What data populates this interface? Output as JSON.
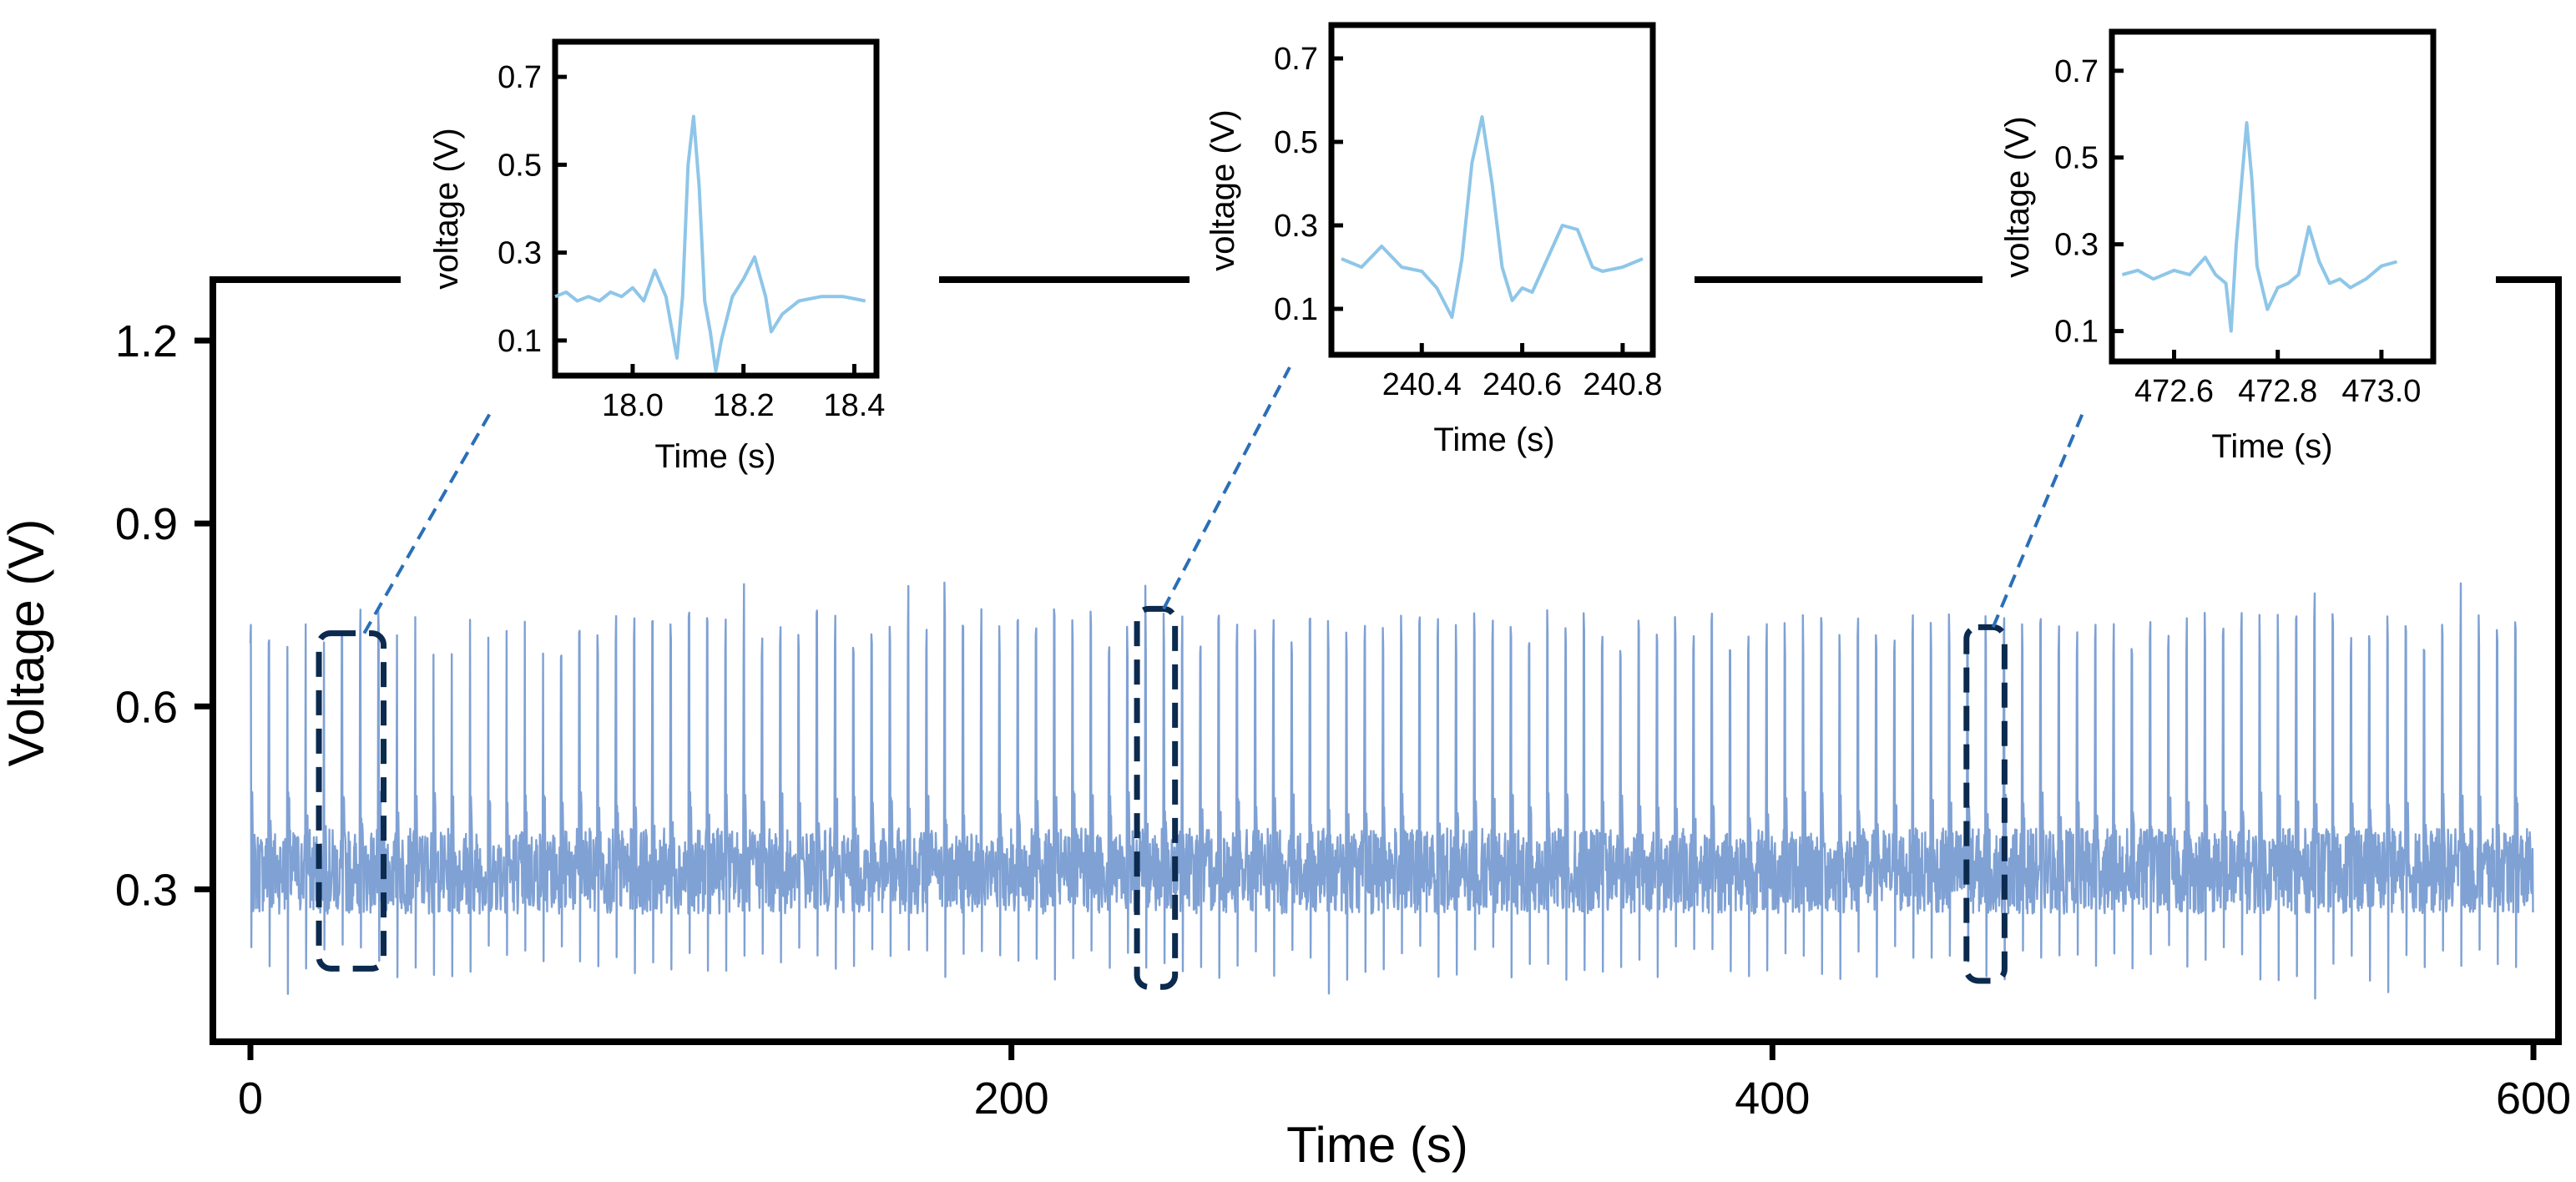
{
  "chart_data": {
    "type": "line",
    "xlabel": "Time (s)",
    "ylabel": "Voltage (V)",
    "xlim": [
      -5,
      605
    ],
    "ylim": [
      0.05,
      1.3
    ],
    "xticks": [
      {
        "value": 0,
        "label": "0"
      },
      {
        "value": 200,
        "label": "200"
      },
      {
        "value": 400,
        "label": "400"
      },
      {
        "value": 600,
        "label": "600"
      }
    ],
    "yticks": [
      {
        "value": 0.3,
        "label": "0.3"
      },
      {
        "value": 0.6,
        "label": "0.6"
      },
      {
        "value": 0.9,
        "label": "0.9"
      },
      {
        "value": 1.2,
        "label": "1.2"
      }
    ],
    "signal": {
      "name": "voltage signal",
      "color": "#7fa1d4",
      "x_range": [
        0,
        600
      ],
      "baseline": 0.33,
      "beat_period_s": 4.8,
      "peak_typical": 0.72,
      "trough_typical": 0.18,
      "peak_max": 0.81,
      "trough_min": 0.12
    },
    "highlight_color": "#0b2a4e",
    "leader_color": "#2a6fb8",
    "highlights": [
      {
        "x_start": 18,
        "x_end": 35,
        "y_low": 0.17,
        "y_high": 0.72
      },
      {
        "x_start": 233,
        "x_end": 243,
        "y_low": 0.14,
        "y_high": 0.76
      },
      {
        "x_start": 451,
        "x_end": 461,
        "y_low": 0.15,
        "y_high": 0.73
      }
    ],
    "insets": [
      {
        "color": "#8ec6e8",
        "xlabel": "Time (s)",
        "ylabel": "voltage (V)",
        "xlim": [
          17.86,
          18.44
        ],
        "ylim": [
          0.02,
          0.78
        ],
        "xticks": [
          {
            "value": 18.0,
            "label": "18.0"
          },
          {
            "value": 18.2,
            "label": "18.2"
          },
          {
            "value": 18.4,
            "label": "18.4"
          }
        ],
        "yticks": [
          {
            "value": 0.1,
            "label": "0.1"
          },
          {
            "value": 0.3,
            "label": "0.3"
          },
          {
            "value": 0.5,
            "label": "0.5"
          },
          {
            "value": 0.7,
            "label": "0.7"
          }
        ],
        "points": [
          [
            17.86,
            0.2
          ],
          [
            17.88,
            0.21
          ],
          [
            17.9,
            0.19
          ],
          [
            17.92,
            0.2
          ],
          [
            17.94,
            0.19
          ],
          [
            17.96,
            0.21
          ],
          [
            17.98,
            0.2
          ],
          [
            18.0,
            0.22
          ],
          [
            18.02,
            0.19
          ],
          [
            18.04,
            0.26
          ],
          [
            18.06,
            0.2
          ],
          [
            18.08,
            0.06
          ],
          [
            18.09,
            0.2
          ],
          [
            18.1,
            0.5
          ],
          [
            18.11,
            0.61
          ],
          [
            18.12,
            0.45
          ],
          [
            18.13,
            0.19
          ],
          [
            18.14,
            0.12
          ],
          [
            18.15,
            0.03
          ],
          [
            18.16,
            0.1
          ],
          [
            18.18,
            0.2
          ],
          [
            18.2,
            0.24
          ],
          [
            18.22,
            0.29
          ],
          [
            18.24,
            0.2
          ],
          [
            18.25,
            0.12
          ],
          [
            18.27,
            0.16
          ],
          [
            18.3,
            0.19
          ],
          [
            18.34,
            0.2
          ],
          [
            18.38,
            0.2
          ],
          [
            18.42,
            0.19
          ]
        ]
      },
      {
        "color": "#8ec6e8",
        "xlabel": "Time (s)",
        "ylabel": "voltage (V)",
        "xlim": [
          240.22,
          240.86
        ],
        "ylim": [
          -0.01,
          0.78
        ],
        "xticks": [
          {
            "value": 240.4,
            "label": "240.4"
          },
          {
            "value": 240.6,
            "label": "240.6"
          },
          {
            "value": 240.8,
            "label": "240.8"
          }
        ],
        "yticks": [
          {
            "value": 0.1,
            "label": "0.1"
          },
          {
            "value": 0.3,
            "label": "0.3"
          },
          {
            "value": 0.5,
            "label": "0.5"
          },
          {
            "value": 0.7,
            "label": "0.7"
          }
        ],
        "points": [
          [
            240.24,
            0.22
          ],
          [
            240.28,
            0.2
          ],
          [
            240.32,
            0.25
          ],
          [
            240.36,
            0.2
          ],
          [
            240.4,
            0.19
          ],
          [
            240.43,
            0.15
          ],
          [
            240.46,
            0.08
          ],
          [
            240.48,
            0.22
          ],
          [
            240.5,
            0.45
          ],
          [
            240.52,
            0.56
          ],
          [
            240.54,
            0.4
          ],
          [
            240.56,
            0.2
          ],
          [
            240.58,
            0.12
          ],
          [
            240.6,
            0.15
          ],
          [
            240.62,
            0.14
          ],
          [
            240.65,
            0.22
          ],
          [
            240.68,
            0.3
          ],
          [
            240.71,
            0.29
          ],
          [
            240.74,
            0.2
          ],
          [
            240.76,
            0.19
          ],
          [
            240.8,
            0.2
          ],
          [
            240.84,
            0.22
          ]
        ]
      },
      {
        "color": "#8ec6e8",
        "xlabel": "Time (s)",
        "ylabel": "voltage (V)",
        "xlim": [
          472.48,
          473.1
        ],
        "ylim": [
          0.03,
          0.79
        ],
        "xticks": [
          {
            "value": 472.6,
            "label": "472.6"
          },
          {
            "value": 472.8,
            "label": "472.8"
          },
          {
            "value": 473.0,
            "label": "473.0"
          }
        ],
        "yticks": [
          {
            "value": 0.1,
            "label": "0.1"
          },
          {
            "value": 0.3,
            "label": "0.3"
          },
          {
            "value": 0.5,
            "label": "0.5"
          },
          {
            "value": 0.7,
            "label": "0.7"
          }
        ],
        "points": [
          [
            472.5,
            0.23
          ],
          [
            472.53,
            0.24
          ],
          [
            472.56,
            0.22
          ],
          [
            472.6,
            0.24
          ],
          [
            472.63,
            0.23
          ],
          [
            472.66,
            0.27
          ],
          [
            472.68,
            0.23
          ],
          [
            472.7,
            0.21
          ],
          [
            472.71,
            0.1
          ],
          [
            472.72,
            0.3
          ],
          [
            472.74,
            0.58
          ],
          [
            472.75,
            0.45
          ],
          [
            472.76,
            0.25
          ],
          [
            472.78,
            0.15
          ],
          [
            472.8,
            0.2
          ],
          [
            472.82,
            0.21
          ],
          [
            472.84,
            0.23
          ],
          [
            472.86,
            0.34
          ],
          [
            472.88,
            0.26
          ],
          [
            472.9,
            0.21
          ],
          [
            472.92,
            0.22
          ],
          [
            472.94,
            0.2
          ],
          [
            472.97,
            0.22
          ],
          [
            473.0,
            0.25
          ],
          [
            473.03,
            0.26
          ]
        ]
      }
    ]
  }
}
